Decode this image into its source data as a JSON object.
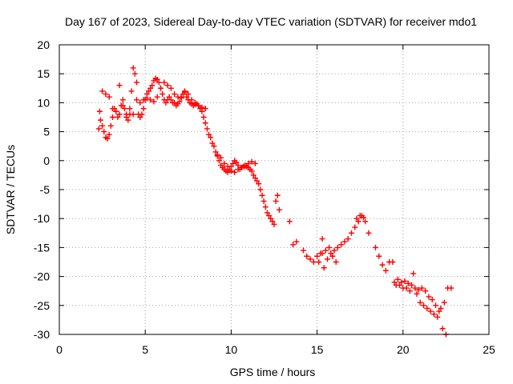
{
  "chart_data": {
    "type": "scatter",
    "title": "Day 167 of 2023, Sidereal Day-to-day VTEC variation (SDTVAR) for receiver mdo1",
    "xlabel": "GPS time / hours",
    "ylabel": "SDTVAR / TECUs",
    "xlim": [
      0,
      25
    ],
    "ylim": [
      -30,
      20
    ],
    "xticks": [
      0,
      5,
      10,
      15,
      20,
      25
    ],
    "yticks": [
      -30,
      -25,
      -20,
      -15,
      -10,
      -5,
      0,
      5,
      10,
      15,
      20
    ],
    "grid": true,
    "marker": "+",
    "color": "#ff0000",
    "series": [
      {
        "name": "SDTVAR",
        "x": [
          2.3,
          2.35,
          2.4,
          2.5,
          2.6,
          2.7,
          2.8,
          2.9,
          3.0,
          3.1,
          3.2,
          3.3,
          3.4,
          3.5,
          3.6,
          3.7,
          3.8,
          3.9,
          4.0,
          4.1,
          4.2,
          4.3,
          4.4,
          4.5,
          4.6,
          4.7,
          4.8,
          4.9,
          5.0,
          5.1,
          5.2,
          5.3,
          5.4,
          5.5,
          5.6,
          5.7,
          5.8,
          5.9,
          6.0,
          6.1,
          6.2,
          6.3,
          6.4,
          6.5,
          6.6,
          6.7,
          6.8,
          6.9,
          7.0,
          7.1,
          7.2,
          7.3,
          7.4,
          7.5,
          7.6,
          7.7,
          7.8,
          7.9,
          8.0,
          8.1,
          8.2,
          8.3,
          8.4,
          8.5,
          8.6,
          8.7,
          8.8,
          8.9,
          9.0,
          9.1,
          9.2,
          9.3,
          9.4,
          9.5,
          9.6,
          9.7,
          9.8,
          9.9,
          10.0,
          10.1,
          10.2,
          10.3,
          10.4,
          10.5,
          10.6,
          10.7,
          10.8,
          10.9,
          11.0,
          11.1,
          11.2,
          11.3,
          11.4,
          11.5,
          11.6,
          11.7,
          11.8,
          11.9,
          12.0,
          12.1,
          12.2,
          12.3,
          12.4,
          12.5,
          12.6,
          12.7,
          12.8,
          13.4,
          13.6,
          13.8,
          14.2,
          14.4,
          14.6,
          14.8,
          15.0,
          15.2,
          15.3,
          15.4,
          15.6,
          15.8,
          16.0,
          16.2,
          16.4,
          16.6,
          16.8,
          17.0,
          17.2,
          17.4,
          17.6,
          17.8,
          18.0,
          18.4,
          18.6,
          18.8,
          19.0,
          19.2,
          19.4,
          19.5,
          19.6,
          19.8,
          20.0,
          20.2,
          20.4,
          20.6,
          20.8,
          21.0,
          21.2,
          21.4,
          21.6,
          21.8,
          22.0,
          22.2,
          22.4,
          22.6,
          22.8,
          2.5,
          2.7,
          2.9,
          3.1,
          3.3,
          3.5,
          3.7,
          3.9,
          4.1,
          4.3,
          4.5,
          4.7,
          4.9,
          5.1,
          5.3,
          5.5,
          5.7,
          5.9,
          6.1,
          6.3,
          6.5,
          6.7,
          6.9,
          7.1,
          7.3,
          7.5,
          7.7,
          7.9,
          8.1,
          8.3,
          8.5,
          9.2,
          9.4,
          9.6,
          9.8,
          10.0,
          10.2,
          10.4,
          10.6,
          10.8,
          11.0,
          11.2,
          11.4,
          15.1,
          15.3,
          15.5,
          15.7,
          15.9,
          16.1,
          17.3,
          17.5,
          17.7,
          19.7,
          19.9,
          20.1,
          20.3,
          20.5,
          20.7,
          20.9,
          21.1,
          21.3,
          21.5,
          21.7,
          21.9,
          22.1,
          22.3,
          22.5
        ],
        "y": [
          5.5,
          8.5,
          7.0,
          6.0,
          5.0,
          4.0,
          3.8,
          4.5,
          6.0,
          7.5,
          9.0,
          8.5,
          7.5,
          8.0,
          9.5,
          10.5,
          9.0,
          7.5,
          7.0,
          9.0,
          12.0,
          16.0,
          15.0,
          13.5,
          8.0,
          7.5,
          8.0,
          9.0,
          10.5,
          11.5,
          12.0,
          12.5,
          13.0,
          13.8,
          14.2,
          14.0,
          13.5,
          12.5,
          11.5,
          10.5,
          10.0,
          10.5,
          11.0,
          10.5,
          10.0,
          10.0,
          9.5,
          9.8,
          10.2,
          10.8,
          11.5,
          11.8,
          11.0,
          10.5,
          10.0,
          9.8,
          9.5,
          9.7,
          9.8,
          9.5,
          9.0,
          8.5,
          7.5,
          6.5,
          5.5,
          4.5,
          4.0,
          3.0,
          2.5,
          1.5,
          0.8,
          0.0,
          -0.8,
          -1.2,
          -1.5,
          -1.8,
          -2.0,
          -1.5,
          -1.0,
          -0.5,
          0.0,
          -0.3,
          -0.8,
          -1.5,
          -1.2,
          -1.0,
          -0.8,
          -1.0,
          -1.2,
          -1.5,
          -1.8,
          -2.5,
          -3.0,
          -3.5,
          -4.0,
          -5.0,
          -6.0,
          -7.0,
          -8.0,
          -9.0,
          -9.5,
          -10.0,
          -10.5,
          -11.0,
          -7.0,
          -6.0,
          -8.5,
          -10.5,
          -14.5,
          -14.0,
          -15.5,
          -16.5,
          -17.0,
          -17.5,
          -16.5,
          -16.0,
          -13.5,
          -18.5,
          -17.0,
          -16.0,
          -15.5,
          -15.0,
          -14.5,
          -14.0,
          -13.5,
          -12.5,
          -11.5,
          -10.5,
          -9.5,
          -10.5,
          -12.5,
          -15.0,
          -16.5,
          -18.0,
          -19.0,
          -17.5,
          -17.5,
          -21.0,
          -21.5,
          -21.5,
          -22.0,
          -22.0,
          -22.5,
          -19.5,
          -23.0,
          -24.5,
          -25.0,
          -25.5,
          -26.0,
          -26.5,
          -27.0,
          -25.5,
          -24.5,
          -22.0,
          -22.0,
          12.0,
          11.5,
          11.0,
          9.0,
          8.5,
          13.0,
          9.5,
          8.0,
          8.0,
          8.0,
          10.5,
          10.0,
          10.5,
          10.8,
          10.5,
          10.2,
          11.0,
          12.5,
          13.5,
          13.0,
          12.5,
          11.5,
          11.0,
          11.0,
          12.0,
          11.5,
          10.5,
          10.0,
          9.5,
          9.2,
          9.0,
          1.0,
          0.5,
          -0.5,
          -1.0,
          -1.8,
          -2.0,
          -1.5,
          -1.2,
          -1.0,
          -0.5,
          -0.2,
          -0.5,
          -17.5,
          -16.0,
          -15.5,
          -15.0,
          -16.5,
          -17.5,
          -10.0,
          -9.5,
          -9.8,
          -20.5,
          -21.0,
          -20.8,
          -21.2,
          -21.5,
          -22.0,
          -22.3,
          -22.0,
          -22.5,
          -23.5,
          -24.0,
          -25.0,
          -26.0,
          -29.0,
          -30.0
        ]
      }
    ]
  }
}
